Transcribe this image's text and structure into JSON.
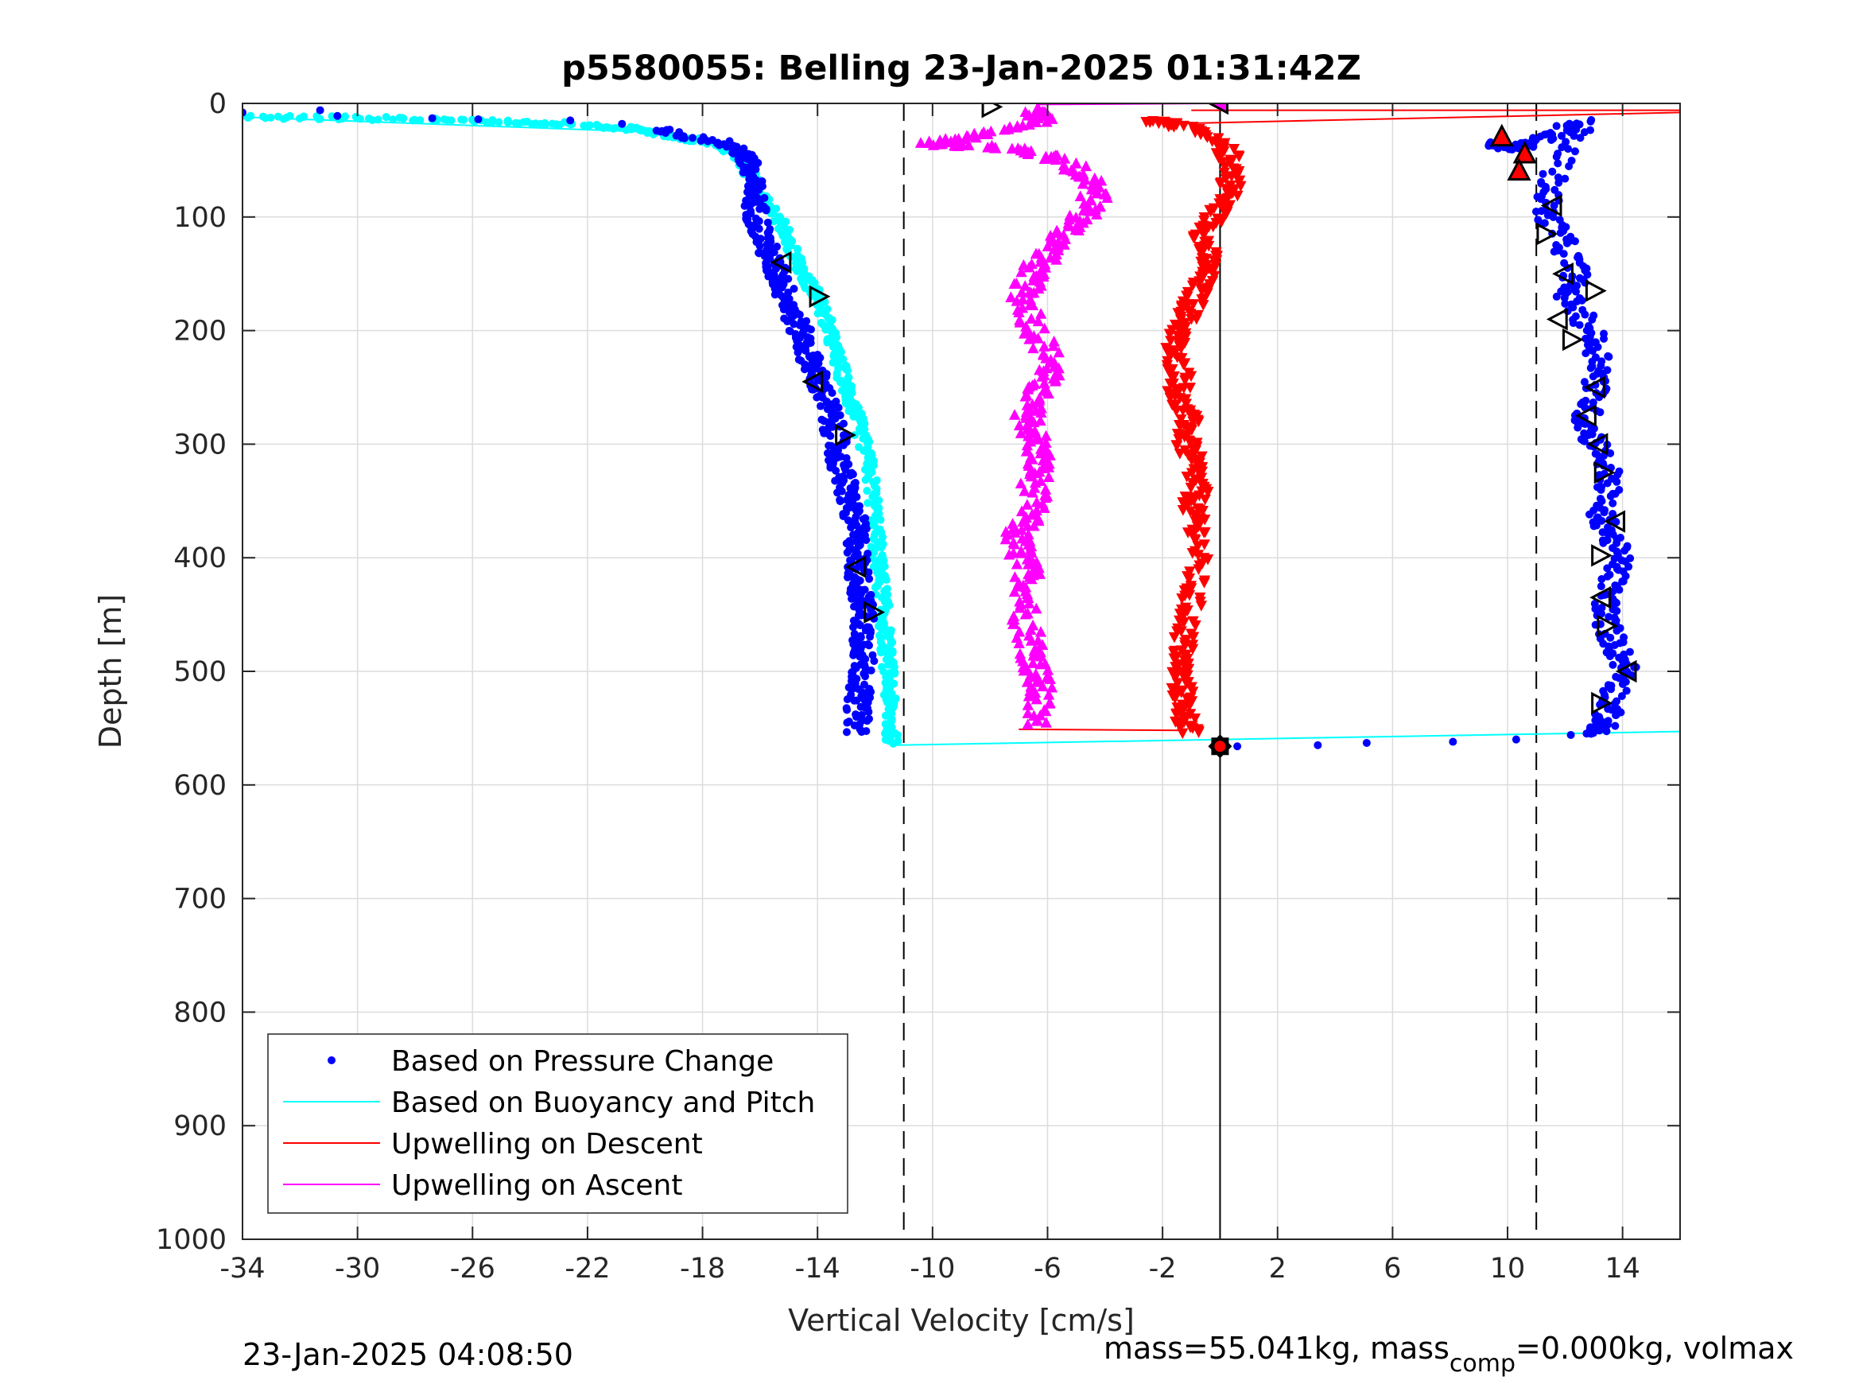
{
  "chart_data": {
    "type": "scatter",
    "title": "p5580055: Belling 23-Jan-2025 01:31:42Z",
    "xlabel": "Vertical Velocity [cm/s]",
    "ylabel": "Depth [m]",
    "xlim": [
      -34,
      16
    ],
    "ylim": [
      0,
      1000
    ],
    "y_reversed": true,
    "xticks": [
      "-34",
      "-30",
      "-26",
      "-22",
      "-18",
      "-14",
      "-10",
      "-6",
      "-2",
      "2",
      "6",
      "10",
      "14"
    ],
    "yticks": [
      "0",
      "100",
      "200",
      "300",
      "400",
      "500",
      "600",
      "700",
      "800",
      "900",
      "1000"
    ],
    "grid": true,
    "legend_position": "bottom-left",
    "reference_lines": {
      "dashed": [
        -11,
        11
      ],
      "solid": [
        0
      ]
    },
    "colors": {
      "pressure": "#0000ff",
      "buoyancy": "#00ffff",
      "descent": "#ff0000",
      "ascent": "#ff00ff"
    },
    "legend": [
      {
        "label": "Based on Pressure Change",
        "style": "dot",
        "color": "#0000ff"
      },
      {
        "label": "Based on Buoyancy and Pitch",
        "style": "line",
        "color": "#00ffff"
      },
      {
        "label": "Upwelling on Descent",
        "style": "line",
        "color": "#ff0000"
      },
      {
        "label": "Upwelling on Ascent",
        "style": "line",
        "color": "#ff00ff"
      }
    ],
    "series": [
      {
        "name": "Based on Pressure Change",
        "description": "descent branch (negative velocity)",
        "x": [
          -34,
          -31.3,
          -30.7,
          -27.4,
          -25.8,
          -22.6,
          -20.8,
          -19.6,
          -17.2,
          -16.5,
          -16.4,
          -16.2,
          -16.1,
          -15.9,
          -15.6,
          -15.3,
          -15.0,
          -14.7,
          -14.4,
          -14.1,
          -13.9,
          -13.6,
          -13.4,
          -13.3,
          -13.1,
          -12.9,
          -12.7,
          -12.6,
          -12.6,
          -12.5,
          -12.4,
          -12.4,
          -12.4,
          -12.5,
          -12.6,
          -12.6
        ],
        "y": [
          8,
          6,
          11,
          13,
          14,
          15,
          18,
          24,
          35,
          45,
          60,
          80,
          100,
          120,
          140,
          155,
          175,
          195,
          215,
          235,
          250,
          270,
          290,
          310,
          330,
          350,
          370,
          390,
          410,
          430,
          450,
          470,
          490,
          510,
          530,
          555
        ]
      },
      {
        "name": "Based on Pressure Change",
        "description": "ascent branch (positive velocity)",
        "x": [
          9.2,
          10.3,
          11.4,
          12.6,
          11.6,
          11.3,
          11.9,
          12.4,
          12.1,
          12.9,
          13.3,
          13.0,
          12.7,
          13.1,
          13.6,
          13.2,
          13.6,
          13.9,
          13.5,
          13.4,
          13.8,
          14.2,
          13.6,
          13.4,
          12.9,
          12.2,
          10.3,
          8.1,
          5.1,
          3.4,
          0.6
        ],
        "y": [
          35,
          40,
          30,
          15,
          65,
          95,
          120,
          150,
          170,
          200,
          230,
          255,
          280,
          300,
          330,
          360,
          380,
          405,
          430,
          455,
          480,
          500,
          525,
          545,
          555,
          556,
          560,
          562,
          563,
          565,
          566
        ]
      },
      {
        "name": "Based on Buoyancy and Pitch",
        "x": [
          -34,
          -29.8,
          -26,
          -22.8,
          -20.5,
          -19.2,
          -17.6,
          -16.8,
          -16.3,
          -15.6,
          -15.0,
          -14.5,
          -14.0,
          -13.6,
          -13.3,
          -13.0,
          -12.8,
          -12.6,
          -12.2,
          -12.0,
          -11.9,
          -11.8,
          -11.7,
          -11.6,
          -11.5,
          -11.5,
          -11.4
        ],
        "y": [
          12,
          13,
          15,
          18,
          22,
          28,
          35,
          45,
          65,
          90,
          120,
          150,
          170,
          200,
          225,
          250,
          265,
          280,
          320,
          360,
          400,
          420,
          450,
          480,
          510,
          540,
          565
        ]
      },
      {
        "name": "Upwelling on Descent",
        "x": [
          -2.2,
          -1.2,
          0.2,
          0.5,
          0.3,
          -0.2,
          -0.6,
          -0.4,
          -0.7,
          -1.0,
          -1.4,
          -1.7,
          -1.3,
          -1.5,
          -1.1,
          -1.2,
          -0.9,
          -0.8,
          -1.0,
          -0.7,
          -0.9,
          -1.1,
          -1.3,
          -1.4,
          -1.3,
          -1.2,
          -1.1
        ],
        "y": [
          15,
          20,
          40,
          60,
          80,
          100,
          120,
          140,
          160,
          180,
          200,
          220,
          240,
          260,
          280,
          300,
          320,
          340,
          360,
          380,
          420,
          450,
          480,
          500,
          520,
          540,
          555
        ]
      },
      {
        "name": "Upwelling on Ascent",
        "x": [
          -6.5,
          -6.2,
          -8.6,
          -10.1,
          -7.2,
          -5.4,
          -4.4,
          -4.4,
          -5.2,
          -5.9,
          -6.6,
          -6.8,
          -6.4,
          -5.8,
          -6.3,
          -6.7,
          -6.5,
          -6.3,
          -6.4,
          -6.6,
          -7.1,
          -6.9,
          -6.6,
          -6.8,
          -6.5,
          -6.4,
          -6.3,
          -6.5
        ],
        "y": [
          5,
          15,
          30,
          35,
          40,
          50,
          70,
          90,
          110,
          130,
          150,
          170,
          200,
          230,
          250,
          270,
          290,
          310,
          330,
          360,
          380,
          400,
          420,
          450,
          480,
          500,
          520,
          550
        ]
      }
    ],
    "markers": {
      "right_triangles": [
        [
          -8,
          3
        ],
        [
          -14,
          170
        ],
        [
          -13.1,
          292
        ],
        [
          -12.1,
          448
        ],
        [
          11.3,
          115
        ],
        [
          13.0,
          165
        ],
        [
          12.2,
          208
        ],
        [
          13.3,
          325
        ],
        [
          13.2,
          398
        ],
        [
          13.4,
          460
        ],
        [
          13.2,
          528
        ]
      ],
      "left_triangles": [
        [
          0,
          0
        ],
        [
          -15.2,
          140
        ],
        [
          -14.1,
          245
        ],
        [
          -12.6,
          408
        ],
        [
          11.6,
          90
        ],
        [
          12.0,
          150
        ],
        [
          11.8,
          190
        ],
        [
          13.1,
          250
        ],
        [
          12.8,
          275
        ],
        [
          13.2,
          300
        ],
        [
          13.8,
          368
        ],
        [
          13.3,
          435
        ],
        [
          14.2,
          500
        ]
      ],
      "red_up_triangles": [
        [
          9.8,
          30
        ],
        [
          10.6,
          45
        ],
        [
          10.4,
          60
        ]
      ],
      "end_marker": [
        0,
        566
      ]
    },
    "footer_left": "23-Jan-2025 04:08:50",
    "footer_right_prefix": "mass=55.041kg, mass",
    "footer_right_sub": "comp",
    "footer_right_suffix": "=0.000kg, volmax"
  }
}
